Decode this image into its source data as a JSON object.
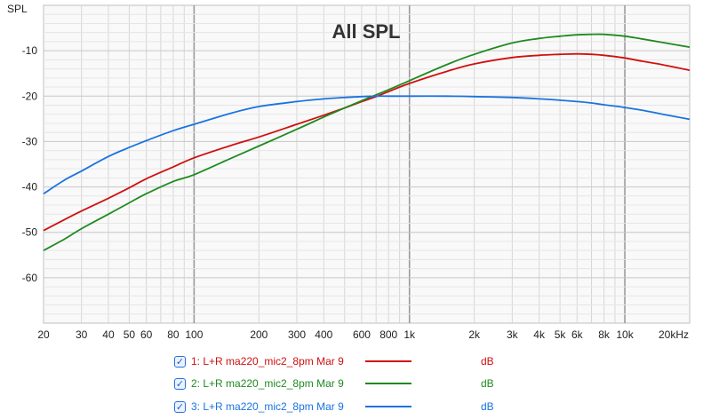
{
  "chart_data": {
    "type": "line",
    "title": "All SPL",
    "ylabel": "SPL",
    "xlabel": "",
    "x_scale": "log",
    "xlim": [
      20,
      20000
    ],
    "ylim": [
      -70,
      0
    ],
    "grid": true,
    "x_ticks": [
      {
        "v": 20,
        "label": "20"
      },
      {
        "v": 30,
        "label": "30"
      },
      {
        "v": 40,
        "label": "40"
      },
      {
        "v": 50,
        "label": "50"
      },
      {
        "v": 60,
        "label": "60"
      },
      {
        "v": 80,
        "label": "80"
      },
      {
        "v": 100,
        "label": "100"
      },
      {
        "v": 200,
        "label": "200"
      },
      {
        "v": 300,
        "label": "300"
      },
      {
        "v": 400,
        "label": "400"
      },
      {
        "v": 600,
        "label": "600"
      },
      {
        "v": 800,
        "label": "800"
      },
      {
        "v": 1000,
        "label": "1k"
      },
      {
        "v": 2000,
        "label": "2k"
      },
      {
        "v": 3000,
        "label": "3k"
      },
      {
        "v": 4000,
        "label": "4k"
      },
      {
        "v": 5000,
        "label": "5k"
      },
      {
        "v": 6000,
        "label": "6k"
      },
      {
        "v": 8000,
        "label": "8k"
      },
      {
        "v": 10000,
        "label": "10k"
      },
      {
        "v": 20000,
        "label": "20kHz"
      }
    ],
    "y_ticks": [
      {
        "v": -10,
        "label": "-10"
      },
      {
        "v": -20,
        "label": "-20"
      },
      {
        "v": -30,
        "label": "-30"
      },
      {
        "v": -40,
        "label": "-40"
      },
      {
        "v": -50,
        "label": "-50"
      },
      {
        "v": -60,
        "label": "-60"
      }
    ],
    "series": [
      {
        "name": "1: L+R ma220_mic2_8pm Mar 9",
        "unit": "dB",
        "color": "#d01010",
        "x": [
          20,
          25,
          30,
          40,
          50,
          60,
          80,
          100,
          150,
          200,
          300,
          400,
          500,
          600,
          700,
          800,
          1000,
          1500,
          2000,
          3000,
          4000,
          5000,
          6000,
          7000,
          8000,
          10000,
          12000,
          15000,
          20000
        ],
        "y": [
          -49.6,
          -47.2,
          -45.3,
          -42.5,
          -40.2,
          -38.2,
          -35.6,
          -33.6,
          -30.8,
          -29,
          -26.2,
          -24.2,
          -22.6,
          -21.2,
          -20.1,
          -19,
          -17.2,
          -14.5,
          -12.9,
          -11.5,
          -11,
          -10.8,
          -10.7,
          -10.8,
          -11,
          -11.6,
          -12.3,
          -13.1,
          -14.3
        ]
      },
      {
        "name": "2: L+R ma220_mic2_8pm Mar 9",
        "unit": "dB",
        "color": "#1f8a1f",
        "x": [
          20,
          25,
          30,
          40,
          50,
          60,
          80,
          100,
          150,
          200,
          300,
          400,
          500,
          600,
          700,
          800,
          1000,
          1500,
          2000,
          3000,
          4000,
          5000,
          6000,
          7000,
          8000,
          10000,
          12000,
          15000,
          20000
        ],
        "y": [
          -54,
          -51.5,
          -49.2,
          -46,
          -43.5,
          -41.5,
          -38.8,
          -37.3,
          -33.6,
          -31,
          -27.3,
          -24.6,
          -22.6,
          -21,
          -19.7,
          -18.6,
          -16.6,
          -13,
          -10.8,
          -8.3,
          -7.3,
          -6.8,
          -6.5,
          -6.4,
          -6.4,
          -6.8,
          -7.4,
          -8.2,
          -9.2
        ]
      },
      {
        "name": "3: L+R ma220_mic2_8pm Mar 9",
        "unit": "dB",
        "color": "#1a73e0",
        "x": [
          20,
          25,
          30,
          40,
          50,
          60,
          80,
          100,
          150,
          200,
          300,
          400,
          500,
          600,
          700,
          800,
          1000,
          1500,
          2000,
          3000,
          4000,
          5000,
          6000,
          7000,
          8000,
          10000,
          12000,
          15000,
          20000
        ],
        "y": [
          -41.5,
          -38.5,
          -36.5,
          -33.3,
          -31.3,
          -29.8,
          -27.6,
          -26.2,
          -23.7,
          -22.3,
          -21.2,
          -20.6,
          -20.3,
          -20.1,
          -20,
          -20,
          -20,
          -20,
          -20.1,
          -20.3,
          -20.6,
          -20.9,
          -21.2,
          -21.5,
          -21.9,
          -22.5,
          -23.1,
          -24,
          -25.1
        ]
      }
    ]
  }
}
